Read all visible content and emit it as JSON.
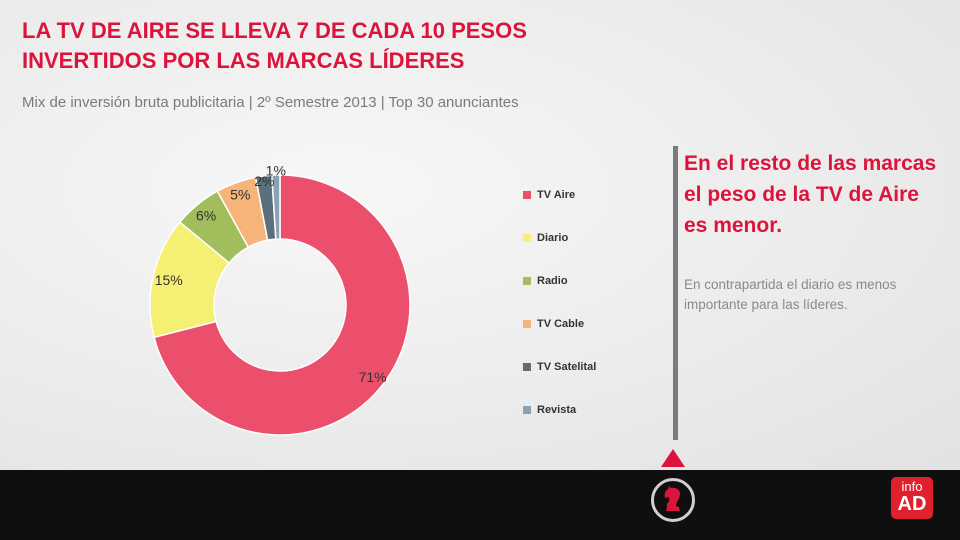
{
  "header": {
    "title_line1": "LA TV DE AIRE SE LLEVA 7 DE CADA 10 PESOS",
    "title_line2": "INVERTIDOS POR LAS MARCAS LÍDERES",
    "subtitle": "Mix de inversión bruta publicitaria | 2º Semestre 2013 | Top 30 anunciantes"
  },
  "chart_data": {
    "type": "pie",
    "donut": true,
    "title": "",
    "categories": [
      "TV Aire",
      "Diario",
      "Radio",
      "TV Cable",
      "TV Satelital",
      "Revista"
    ],
    "values": [
      71,
      15,
      6,
      5,
      2,
      1
    ],
    "data_labels": [
      "71%",
      "15%",
      "6%",
      "5%",
      "2%",
      "1%"
    ],
    "colors": [
      "#ec4f6b",
      "#f5ef73",
      "#a2bd5c",
      "#f7b479",
      "#5c6f7c",
      "#8aa3b4"
    ],
    "legend_position": "right"
  },
  "callout": {
    "heading": "En el resto de las marcas el peso de la TV de Aire es menor.",
    "body": "En contrapartida el diario es menos importante para las líderes."
  },
  "footer": {
    "logo_top": "info",
    "logo_bottom": "AD",
    "icon": "chess-knight-icon",
    "accent": "#dc143c",
    "background": "#0f0f0f"
  }
}
